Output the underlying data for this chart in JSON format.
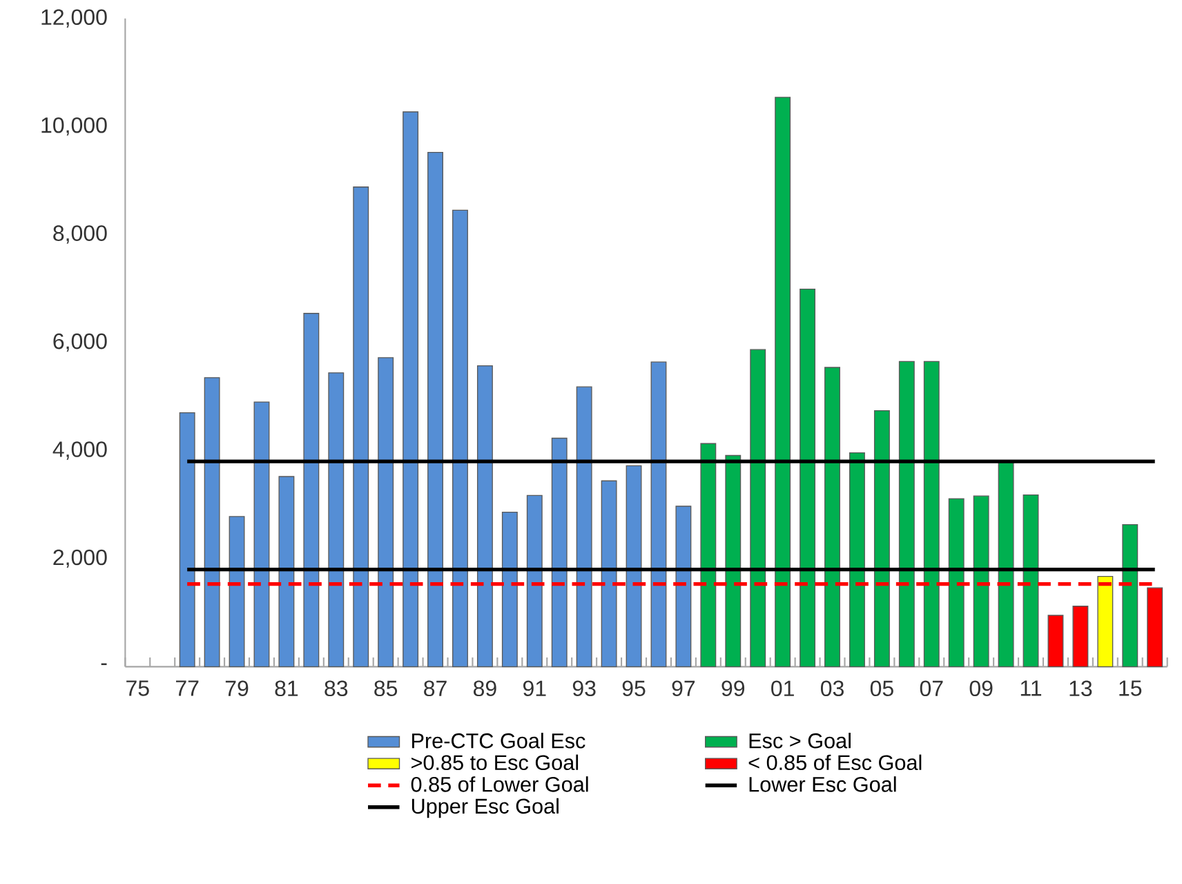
{
  "chart_data": {
    "type": "bar",
    "categories": [
      "75",
      null,
      "77",
      null,
      "79",
      null,
      "81",
      null,
      "83",
      null,
      "85",
      null,
      "87",
      null,
      "89",
      null,
      "91",
      null,
      "93",
      null,
      "95",
      null,
      "97",
      null,
      "99",
      null,
      "01",
      null,
      "03",
      null,
      "05",
      null,
      "07",
      null,
      "09",
      null,
      "11",
      null,
      "13",
      null,
      "15",
      null
    ],
    "series": [
      {
        "name": "Pre-CTC Goal Esc",
        "color": "#558ed5",
        "values": [
          null,
          null,
          4700,
          5350,
          2780,
          4900,
          3520,
          6540,
          5440,
          8880,
          5720,
          10270,
          9520,
          8450,
          5570,
          2860,
          3170,
          4230,
          5180,
          3440,
          3720,
          5640,
          2970,
          null,
          null,
          null,
          null,
          null,
          null,
          null,
          null,
          null,
          null,
          null,
          null,
          null,
          null,
          null,
          null,
          null,
          null,
          null
        ]
      },
      {
        "name": "Esc > Goal",
        "color": "#00b050",
        "values": [
          null,
          null,
          null,
          null,
          null,
          null,
          null,
          null,
          null,
          null,
          null,
          null,
          null,
          null,
          null,
          null,
          null,
          null,
          null,
          null,
          null,
          null,
          null,
          4130,
          3910,
          5870,
          10540,
          6990,
          5540,
          3960,
          4740,
          5650,
          5650,
          3110,
          3160,
          3800,
          3180,
          null,
          null,
          null,
          2630,
          null
        ]
      },
      {
        "name": ">0.85 to Esc Goal",
        "color": "#ffff00",
        "values": [
          null,
          null,
          null,
          null,
          null,
          null,
          null,
          null,
          null,
          null,
          null,
          null,
          null,
          null,
          null,
          null,
          null,
          null,
          null,
          null,
          null,
          null,
          null,
          null,
          null,
          null,
          null,
          null,
          null,
          null,
          null,
          null,
          null,
          null,
          null,
          null,
          null,
          null,
          null,
          1670,
          null,
          null
        ]
      },
      {
        "name": "< 0.85 of Esc Goal",
        "color": "#ff0000",
        "values": [
          null,
          null,
          null,
          null,
          null,
          null,
          null,
          null,
          null,
          null,
          null,
          null,
          null,
          null,
          null,
          null,
          null,
          null,
          null,
          null,
          null,
          null,
          null,
          null,
          null,
          null,
          null,
          null,
          null,
          null,
          null,
          null,
          null,
          null,
          null,
          null,
          null,
          950,
          1120,
          null,
          null,
          1460
        ]
      },
      {
        "name": "0.85 of Lower Goal",
        "type": "line",
        "line_style": "dashed",
        "color": "#ff0000",
        "values": [
          null,
          null,
          1530,
          1530,
          1530,
          1530,
          1530,
          1530,
          1530,
          1530,
          1530,
          1530,
          1530,
          1530,
          1530,
          1530,
          1530,
          1530,
          1530,
          1530,
          1530,
          1530,
          1530,
          1530,
          1530,
          1530,
          1530,
          1530,
          1530,
          1530,
          1530,
          1530,
          1530,
          1530,
          1530,
          1530,
          1530,
          1530,
          1530,
          1530,
          1530,
          1530
        ]
      },
      {
        "name": "Lower Esc Goal",
        "type": "line",
        "line_style": "solid",
        "color": "#000000",
        "values": [
          null,
          null,
          1800,
          1800,
          1800,
          1800,
          1800,
          1800,
          1800,
          1800,
          1800,
          1800,
          1800,
          1800,
          1800,
          1800,
          1800,
          1800,
          1800,
          1800,
          1800,
          1800,
          1800,
          1800,
          1800,
          1800,
          1800,
          1800,
          1800,
          1800,
          1800,
          1800,
          1800,
          1800,
          1800,
          1800,
          1800,
          1800,
          1800,
          1800,
          1800,
          1800
        ]
      },
      {
        "name": "Upper Esc Goal",
        "type": "line",
        "line_style": "solid",
        "color": "#000000",
        "values": [
          null,
          null,
          3800,
          3800,
          3800,
          3800,
          3800,
          3800,
          3800,
          3800,
          3800,
          3800,
          3800,
          3800,
          3800,
          3800,
          3800,
          3800,
          3800,
          3800,
          3800,
          3800,
          3800,
          3800,
          3800,
          3800,
          3800,
          3800,
          3800,
          3800,
          3800,
          3800,
          3800,
          3800,
          3800,
          3800,
          3800,
          3800,
          3800,
          3800,
          3800,
          3800
        ]
      }
    ],
    "ylim": [
      0,
      12000
    ],
    "yticks": [
      {
        "value": 0,
        "label": "-"
      },
      {
        "value": 2000,
        "label": "2,000"
      },
      {
        "value": 4000,
        "label": "4,000"
      },
      {
        "value": 6000,
        "label": "6,000"
      },
      {
        "value": 8000,
        "label": "8,000"
      },
      {
        "value": 10000,
        "label": "10,000"
      },
      {
        "value": 12000,
        "label": "12,000"
      }
    ],
    "grid": false,
    "legend": "bottom"
  }
}
